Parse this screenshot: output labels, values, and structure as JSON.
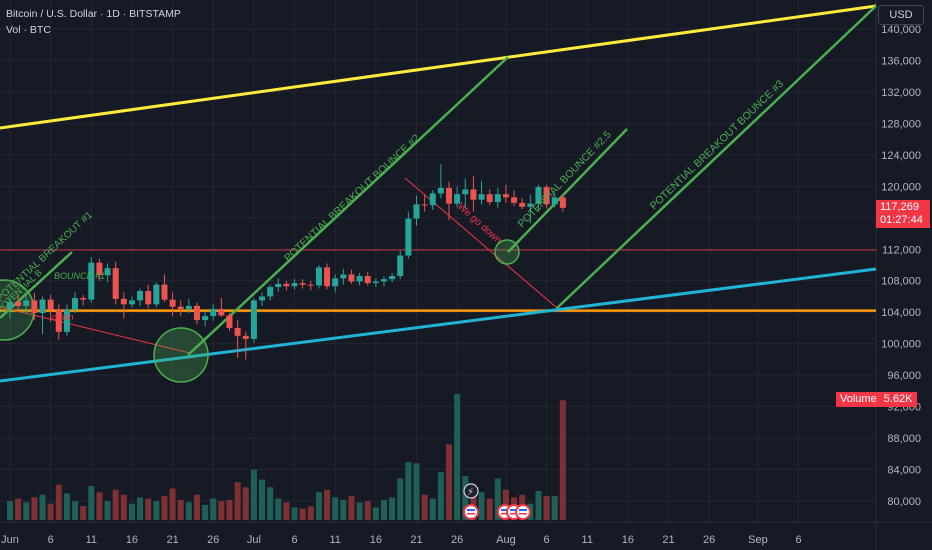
{
  "header": {
    "title": "Bitcoin / U.S. Dollar · 1D · BITSTAMP",
    "subtitle": "Vol · BTC"
  },
  "currency_button": "USD",
  "price_tag": {
    "price": "117,269",
    "countdown": "01:27:44",
    "color": "#f23645"
  },
  "volume_tag": {
    "label": "Volume",
    "value": "5.62K",
    "color": "#f23645"
  },
  "colors": {
    "background": "#161a25",
    "grid": "#222631",
    "up": "#26a69a",
    "down": "#ef5350",
    "vol_up": "#1e5f58",
    "vol_down": "#7d3134",
    "yellow_line": "#ffeb3b",
    "cyan_line": "#20b4d6",
    "orange_line": "#ff9800",
    "red_line": "#f23645",
    "green_annot": "#4caf50"
  },
  "annotations": {
    "breakout1": "POTENTIAL BREAKOUT #1",
    "breakout2": "POTENTIAL BREAKOUT BOUNCE #2",
    "bounce25": "POTENTIAL BOUNCE #2.5",
    "breakout3": "POTENTIAL BREAKOUT BOUNCE #3",
    "bounce1": "BOUNCE #1",
    "wegodown": "We go down",
    "down": "down",
    "partial_left": "POTENTIAL B"
  },
  "chart_data": {
    "type": "candlestick",
    "title": "Bitcoin / U.S. Dollar · 1D · BITSTAMP",
    "xlabel": "",
    "ylabel": "",
    "ylim": [
      76000,
      150000
    ],
    "grid": true,
    "x_ticks": [
      "Jun",
      "6",
      "11",
      "16",
      "21",
      "26",
      "Jul",
      "6",
      "11",
      "16",
      "21",
      "26",
      "Aug",
      "6",
      "11",
      "16",
      "21",
      "26",
      "Sep",
      "6"
    ],
    "y_ticks": [
      "80,000",
      "84,000",
      "88,000",
      "92,000",
      "96,000",
      "100,000",
      "104,000",
      "108,000",
      "112,000",
      "116,000",
      "120,000",
      "124,000",
      "128,000",
      "132,000",
      "136,000",
      "140,000"
    ],
    "candles": [
      {
        "o": 104500,
        "h": 105800,
        "l": 103200,
        "c": 105300,
        "v": 0.15
      },
      {
        "o": 105300,
        "h": 106200,
        "l": 104400,
        "c": 104800,
        "v": 0.17
      },
      {
        "o": 104800,
        "h": 106000,
        "l": 103800,
        "c": 105500,
        "v": 0.14
      },
      {
        "o": 105500,
        "h": 106500,
        "l": 103000,
        "c": 103900,
        "v": 0.18
      },
      {
        "o": 103900,
        "h": 106000,
        "l": 101200,
        "c": 105600,
        "v": 0.2
      },
      {
        "o": 105600,
        "h": 106200,
        "l": 102800,
        "c": 104300,
        "v": 0.13
      },
      {
        "o": 104300,
        "h": 105000,
        "l": 100500,
        "c": 101500,
        "v": 0.28
      },
      {
        "o": 101500,
        "h": 105000,
        "l": 101000,
        "c": 104300,
        "v": 0.21
      },
      {
        "o": 104300,
        "h": 106500,
        "l": 103900,
        "c": 105800,
        "v": 0.15
      },
      {
        "o": 105800,
        "h": 106200,
        "l": 104800,
        "c": 105600,
        "v": 0.11
      },
      {
        "o": 105600,
        "h": 111000,
        "l": 105200,
        "c": 110300,
        "v": 0.27
      },
      {
        "o": 110300,
        "h": 110800,
        "l": 108000,
        "c": 108700,
        "v": 0.22
      },
      {
        "o": 108700,
        "h": 110200,
        "l": 107800,
        "c": 109600,
        "v": 0.15
      },
      {
        "o": 109600,
        "h": 110400,
        "l": 105000,
        "c": 105700,
        "v": 0.24
      },
      {
        "o": 105700,
        "h": 106500,
        "l": 103200,
        "c": 105000,
        "v": 0.2
      },
      {
        "o": 105000,
        "h": 106000,
        "l": 104600,
        "c": 105500,
        "v": 0.13
      },
      {
        "o": 105500,
        "h": 107000,
        "l": 104800,
        "c": 106700,
        "v": 0.18
      },
      {
        "o": 106700,
        "h": 107500,
        "l": 104500,
        "c": 105000,
        "v": 0.17
      },
      {
        "o": 105000,
        "h": 107800,
        "l": 104600,
        "c": 107500,
        "v": 0.15
      },
      {
        "o": 107500,
        "h": 108800,
        "l": 105300,
        "c": 105600,
        "v": 0.19
      },
      {
        "o": 105600,
        "h": 106500,
        "l": 103500,
        "c": 104700,
        "v": 0.25
      },
      {
        "o": 104700,
        "h": 105500,
        "l": 103500,
        "c": 104400,
        "v": 0.16
      },
      {
        "o": 104400,
        "h": 105700,
        "l": 103900,
        "c": 104800,
        "v": 0.14
      },
      {
        "o": 104800,
        "h": 105200,
        "l": 102500,
        "c": 103000,
        "v": 0.2
      },
      {
        "o": 103000,
        "h": 104000,
        "l": 102200,
        "c": 103500,
        "v": 0.12
      },
      {
        "o": 103500,
        "h": 105000,
        "l": 102900,
        "c": 104400,
        "v": 0.17
      },
      {
        "o": 104400,
        "h": 105800,
        "l": 103400,
        "c": 103600,
        "v": 0.15
      },
      {
        "o": 103600,
        "h": 103900,
        "l": 101600,
        "c": 102000,
        "v": 0.16
      },
      {
        "o": 102000,
        "h": 103000,
        "l": 98200,
        "c": 101000,
        "v": 0.3
      },
      {
        "o": 101000,
        "h": 101500,
        "l": 98000,
        "c": 100600,
        "v": 0.26
      },
      {
        "o": 100600,
        "h": 105800,
        "l": 100100,
        "c": 105500,
        "v": 0.4
      },
      {
        "o": 105500,
        "h": 106500,
        "l": 104800,
        "c": 106000,
        "v": 0.32
      },
      {
        "o": 106000,
        "h": 107500,
        "l": 105500,
        "c": 107200,
        "v": 0.26
      },
      {
        "o": 107200,
        "h": 108300,
        "l": 106600,
        "c": 107600,
        "v": 0.17
      },
      {
        "o": 107600,
        "h": 108000,
        "l": 106800,
        "c": 107300,
        "v": 0.14
      },
      {
        "o": 107300,
        "h": 108200,
        "l": 106900,
        "c": 107700,
        "v": 0.1
      },
      {
        "o": 107700,
        "h": 108200,
        "l": 107000,
        "c": 107500,
        "v": 0.09
      },
      {
        "o": 107500,
        "h": 108000,
        "l": 106800,
        "c": 107400,
        "v": 0.11
      },
      {
        "o": 107400,
        "h": 110000,
        "l": 107000,
        "c": 109700,
        "v": 0.22
      },
      {
        "o": 109700,
        "h": 110200,
        "l": 106900,
        "c": 107300,
        "v": 0.24
      },
      {
        "o": 107300,
        "h": 108800,
        "l": 106500,
        "c": 108300,
        "v": 0.18
      },
      {
        "o": 108300,
        "h": 109500,
        "l": 107500,
        "c": 108800,
        "v": 0.16
      },
      {
        "o": 108800,
        "h": 109400,
        "l": 107600,
        "c": 107900,
        "v": 0.19
      },
      {
        "o": 107900,
        "h": 109000,
        "l": 107400,
        "c": 108600,
        "v": 0.14
      },
      {
        "o": 108600,
        "h": 109100,
        "l": 107400,
        "c": 107700,
        "v": 0.15
      },
      {
        "o": 107700,
        "h": 108300,
        "l": 107200,
        "c": 107900,
        "v": 0.1
      },
      {
        "o": 107900,
        "h": 108600,
        "l": 107300,
        "c": 108200,
        "v": 0.16
      },
      {
        "o": 108200,
        "h": 109000,
        "l": 107800,
        "c": 108600,
        "v": 0.18
      },
      {
        "o": 108600,
        "h": 111800,
        "l": 108200,
        "c": 111200,
        "v": 0.33
      },
      {
        "o": 111200,
        "h": 116800,
        "l": 110800,
        "c": 115900,
        "v": 0.46
      },
      {
        "o": 115900,
        "h": 118800,
        "l": 115000,
        "c": 117700,
        "v": 0.45
      },
      {
        "o": 117700,
        "h": 119000,
        "l": 116800,
        "c": 117600,
        "v": 0.2
      },
      {
        "o": 117600,
        "h": 119500,
        "l": 117000,
        "c": 119100,
        "v": 0.17
      },
      {
        "o": 119100,
        "h": 122800,
        "l": 118500,
        "c": 119800,
        "v": 0.38
      },
      {
        "o": 119800,
        "h": 120600,
        "l": 115700,
        "c": 117800,
        "v": 0.6
      },
      {
        "o": 117800,
        "h": 120000,
        "l": 117300,
        "c": 119000,
        "v": 1.0
      },
      {
        "o": 119000,
        "h": 121000,
        "l": 117200,
        "c": 119600,
        "v": 0.35
      },
      {
        "o": 119600,
        "h": 121300,
        "l": 116800,
        "c": 118300,
        "v": 0.26
      },
      {
        "o": 118300,
        "h": 120700,
        "l": 117700,
        "c": 119000,
        "v": 0.22
      },
      {
        "o": 119000,
        "h": 119600,
        "l": 117600,
        "c": 118000,
        "v": 0.17
      },
      {
        "o": 118000,
        "h": 119800,
        "l": 117300,
        "c": 119000,
        "v": 0.33
      },
      {
        "o": 119000,
        "h": 120200,
        "l": 117900,
        "c": 118600,
        "v": 0.24
      },
      {
        "o": 118600,
        "h": 119500,
        "l": 117500,
        "c": 117900,
        "v": 0.18
      },
      {
        "o": 117900,
        "h": 118500,
        "l": 117100,
        "c": 117400,
        "v": 0.2
      },
      {
        "o": 117400,
        "h": 119000,
        "l": 115300,
        "c": 117800,
        "v": 0.13
      },
      {
        "o": 117800,
        "h": 120200,
        "l": 116800,
        "c": 119900,
        "v": 0.23
      },
      {
        "o": 119900,
        "h": 120200,
        "l": 117200,
        "c": 117700,
        "v": 0.19
      },
      {
        "o": 117700,
        "h": 119200,
        "l": 117300,
        "c": 118600,
        "v": 0.19
      },
      {
        "o": 118600,
        "h": 119000,
        "l": 116800,
        "c": 117269,
        "v": 0.95
      }
    ]
  }
}
